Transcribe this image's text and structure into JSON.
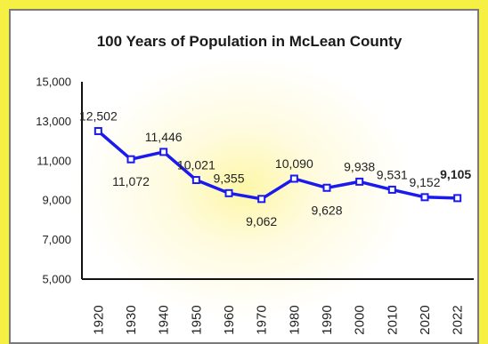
{
  "chart_data": {
    "type": "line",
    "title": "100 Years of Population in McLean County",
    "xlabel": "",
    "ylabel": "",
    "ylim": [
      5000,
      15000
    ],
    "yticks": [
      "5,000",
      "7,000",
      "9,000",
      "11,000",
      "13,000",
      "15,000"
    ],
    "categories": [
      "1920",
      "1930",
      "1940",
      "1950",
      "1960",
      "1970",
      "1980",
      "1990",
      "2000",
      "2010",
      "2020",
      "2022"
    ],
    "series": [
      {
        "values": [
          12502,
          11072,
          11446,
          10021,
          9355,
          9062,
          10090,
          9628,
          9938,
          9531,
          9152,
          9105
        ],
        "labels": [
          "12,502",
          "11,072",
          "11,446",
          "10,021",
          "9,355",
          "9,062",
          "10,090",
          "9,628",
          "9,938",
          "9,531",
          "9,152",
          "9,105"
        ],
        "highlight_last": true
      }
    ],
    "grid": false,
    "legend": "none",
    "line_color": "#1a1aee",
    "marker_fill": "#ffffff",
    "background_color": "#f6f045"
  }
}
